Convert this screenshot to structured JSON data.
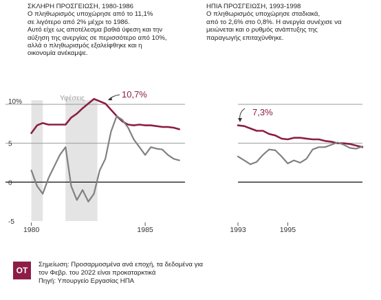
{
  "panels": [
    {
      "heading": "ΣΚΛΗΡΗ ΠΡΟΣΓΕΙΩΣΗ, 1980-1986",
      "lines": [
        "Ο πληθωρισμός υποχώρησε από το 11,1%",
        "σε λιγότερο από 2% μέχρι το 1986.",
        "Αυτό είχε ως αποτέλεσμα βαθιά ύφεση και την",
        "αύξηση της ανεργίας σε περισσότερο από 10%,",
        "αλλά ο πληθωρισμός εξαλείφθηκε και η",
        "οικονομία ανέκαμψε."
      ]
    },
    {
      "heading": "ΗΠΙΑ ΠΡΟΣΓΕΙΩΣΗ, 1993-1998",
      "lines": [
        "Ο πληθωρισμός υποχώρησε σταδιακά,",
        "από το 2,6% στο 0,8%. Η ανεργία συνέχισε να",
        "μειώνεται και ο ρυθμός ανάπτυξης της",
        "παραγωγής επιταχύνθηκε."
      ]
    }
  ],
  "chart_data": [
    {
      "type": "line",
      "y_ticks": [
        "10%",
        "5",
        "0",
        "-5"
      ],
      "x_ticks": [
        "1980",
        "1985"
      ],
      "ylim": [
        -5,
        10
      ],
      "xlim": [
        1979.83,
        1986.75
      ],
      "recession_label": "Υφέσεις",
      "recessions": [
        [
          1980.0,
          1980.5
        ],
        [
          1981.5,
          1982.9
        ]
      ],
      "peak_annotation": "10,7%",
      "series": [
        {
          "color": "#8c1d46",
          "x": [
            1980.0,
            1980.25,
            1980.5,
            1980.75,
            1981.0,
            1981.25,
            1981.5,
            1981.75,
            1982.0,
            1982.25,
            1982.5,
            1982.75,
            1983.0,
            1983.25,
            1983.5,
            1983.75,
            1984.0,
            1984.25,
            1984.5,
            1984.75,
            1985.0,
            1985.25,
            1985.5,
            1985.75,
            1986.0,
            1986.25,
            1986.5
          ],
          "values": [
            6.3,
            7.3,
            7.6,
            7.4,
            7.4,
            7.4,
            7.4,
            8.3,
            8.8,
            9.5,
            10.1,
            10.7,
            10.4,
            10.1,
            9.3,
            8.5,
            7.8,
            7.4,
            7.3,
            7.4,
            7.3,
            7.3,
            7.2,
            7.1,
            7.1,
            7.0,
            6.8
          ]
        },
        {
          "color": "#808080",
          "x": [
            1980.0,
            1980.25,
            1980.5,
            1980.75,
            1981.0,
            1981.25,
            1981.5,
            1981.75,
            1982.0,
            1982.25,
            1982.5,
            1982.75,
            1983.0,
            1983.25,
            1983.5,
            1983.75,
            1984.0,
            1984.25,
            1984.5,
            1984.75,
            1985.0,
            1985.25,
            1985.5,
            1985.75,
            1986.0,
            1986.25,
            1986.5
          ],
          "values": [
            1.5,
            -0.5,
            -1.5,
            0.5,
            2.0,
            3.5,
            4.5,
            -0.5,
            -2.3,
            -1.0,
            -2.5,
            -1.5,
            1.5,
            3.0,
            6.5,
            8.5,
            8.0,
            7.0,
            5.5,
            4.5,
            3.5,
            4.5,
            4.3,
            4.2,
            3.5,
            3.0,
            2.8
          ]
        }
      ]
    },
    {
      "type": "line",
      "x_ticks": [
        "1993",
        "1995"
      ],
      "ylim": [
        -5,
        10
      ],
      "xlim": [
        1993.0,
        1998.0
      ],
      "peak_annotation": "7,3%",
      "series": [
        {
          "color": "#8c1d46",
          "x": [
            1993.0,
            1993.25,
            1993.5,
            1993.75,
            1994.0,
            1994.25,
            1994.5,
            1994.75,
            1995.0,
            1995.25,
            1995.5,
            1995.75,
            1996.0,
            1996.25,
            1996.5,
            1996.75,
            1997.0,
            1997.25,
            1997.5,
            1997.75,
            1998.0
          ],
          "values": [
            7.3,
            7.2,
            6.9,
            6.6,
            6.6,
            6.2,
            6.0,
            5.6,
            5.5,
            5.7,
            5.7,
            5.6,
            5.5,
            5.5,
            5.3,
            5.2,
            5.0,
            5.0,
            4.9,
            4.7,
            4.5
          ]
        },
        {
          "color": "#808080",
          "x": [
            1993.0,
            1993.25,
            1993.5,
            1993.75,
            1994.0,
            1994.25,
            1994.5,
            1994.75,
            1995.0,
            1995.25,
            1995.5,
            1995.75,
            1996.0,
            1996.25,
            1996.5,
            1996.75,
            1997.0,
            1997.25,
            1997.5,
            1997.75,
            1998.0
          ],
          "values": [
            3.3,
            2.8,
            2.3,
            2.6,
            3.5,
            4.2,
            4.1,
            3.3,
            2.4,
            2.8,
            2.5,
            3.0,
            4.2,
            4.5,
            4.5,
            4.8,
            5.1,
            4.8,
            4.4,
            4.3,
            4.6
          ]
        }
      ]
    }
  ],
  "footer": {
    "logo": "ΟΤ",
    "lines": [
      "Σημείωση: Προσαρμοσμένα ανά εποχή, τα δεδομένα για",
      "τον Φεβρ. του 2022 είναι προκαταρκτικά",
      "Πηγή: Υπουργείο Εργασίας ΗΠΑ"
    ]
  }
}
